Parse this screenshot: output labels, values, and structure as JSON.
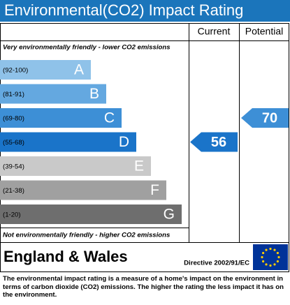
{
  "title": "Environmental(CO2) Impact Rating",
  "columns": [
    "Current",
    "Potential"
  ],
  "top_note": "Very environmentally friendly - lower CO2 emissions",
  "bottom_note": "Not environmentally friendly - higher CO2 emissions",
  "bands": [
    {
      "range": "(92-100)",
      "letter": "A",
      "color": "#8fc2e9"
    },
    {
      "range": "(81-91)",
      "letter": "B",
      "color": "#64a8e0"
    },
    {
      "range": "(69-80)",
      "letter": "C",
      "color": "#3d8fd6"
    },
    {
      "range": "(55-68)",
      "letter": "D",
      "color": "#1a74c9"
    },
    {
      "range": "(39-54)",
      "letter": "E",
      "color": "#c9c9c9"
    },
    {
      "range": "(21-38)",
      "letter": "F",
      "color": "#a0a0a0"
    },
    {
      "range": "(1-20)",
      "letter": "G",
      "color": "#6e6e6e"
    }
  ],
  "current": 56,
  "potential": 70,
  "region": "England & Wales",
  "directive": "Directive 2002/91/EC",
  "description": "The environmental impact rating is a measure of a home's impact on the environment in terms of carbon dioxide (CO2) emissions. The higher the rating the less impact it has on the environment."
}
